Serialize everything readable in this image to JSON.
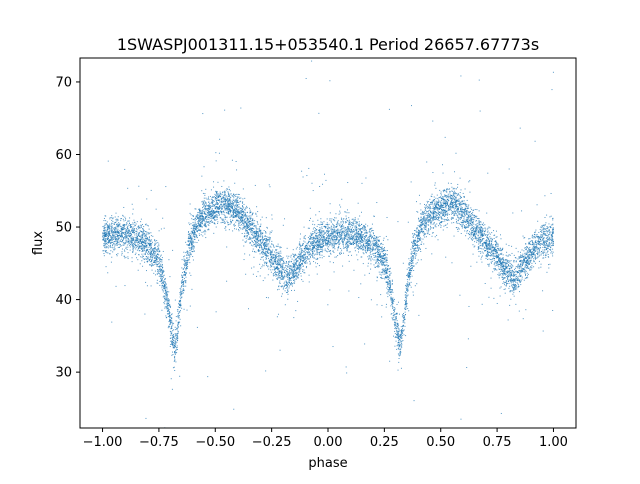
{
  "title": "1SWASPJ001311.15+053540.1 Period 26657.67773s",
  "chart_data": {
    "type": "scatter",
    "title": "1SWASPJ001311.15+053540.1 Period 26657.67773s",
    "xlabel": "phase",
    "ylabel": "flux",
    "xlim": [
      -1.1,
      1.1
    ],
    "ylim": [
      22.3,
      73.3
    ],
    "xticks": [
      -1.0,
      -0.75,
      -0.5,
      -0.25,
      0.0,
      0.25,
      0.5,
      0.75,
      1.0
    ],
    "xtick_labels": [
      "−1.00",
      "−0.75",
      "−0.50",
      "−0.25",
      "0.00",
      "0.25",
      "0.50",
      "0.75",
      "1.00"
    ],
    "yticks": [
      30,
      40,
      50,
      60,
      70
    ],
    "ytick_labels": [
      "30",
      "40",
      "50",
      "60",
      "70"
    ],
    "grid": false,
    "legend": "none",
    "marker_color": "#1f77b4",
    "series": [
      {
        "phase_period": 1.0,
        "light_curve_profile": {
          "x": [
            0.0,
            0.05,
            0.1,
            0.15,
            0.2,
            0.25,
            0.28,
            0.31,
            0.32,
            0.33,
            0.35,
            0.38,
            0.42,
            0.47,
            0.52,
            0.56,
            0.6,
            0.65,
            0.7,
            0.75,
            0.79,
            0.82,
            0.85,
            0.9,
            0.95,
            1.0
          ],
          "y": [
            48.5,
            49.0,
            49.0,
            48.5,
            47.5,
            45.5,
            41.0,
            35.0,
            33.5,
            35.5,
            41.0,
            47.0,
            50.5,
            52.0,
            53.0,
            53.0,
            52.0,
            50.0,
            48.0,
            46.0,
            44.0,
            43.0,
            44.0,
            46.5,
            48.0,
            48.5
          ]
        },
        "point_count": 9000,
        "scatter_sigma": 1.2
      }
    ]
  }
}
